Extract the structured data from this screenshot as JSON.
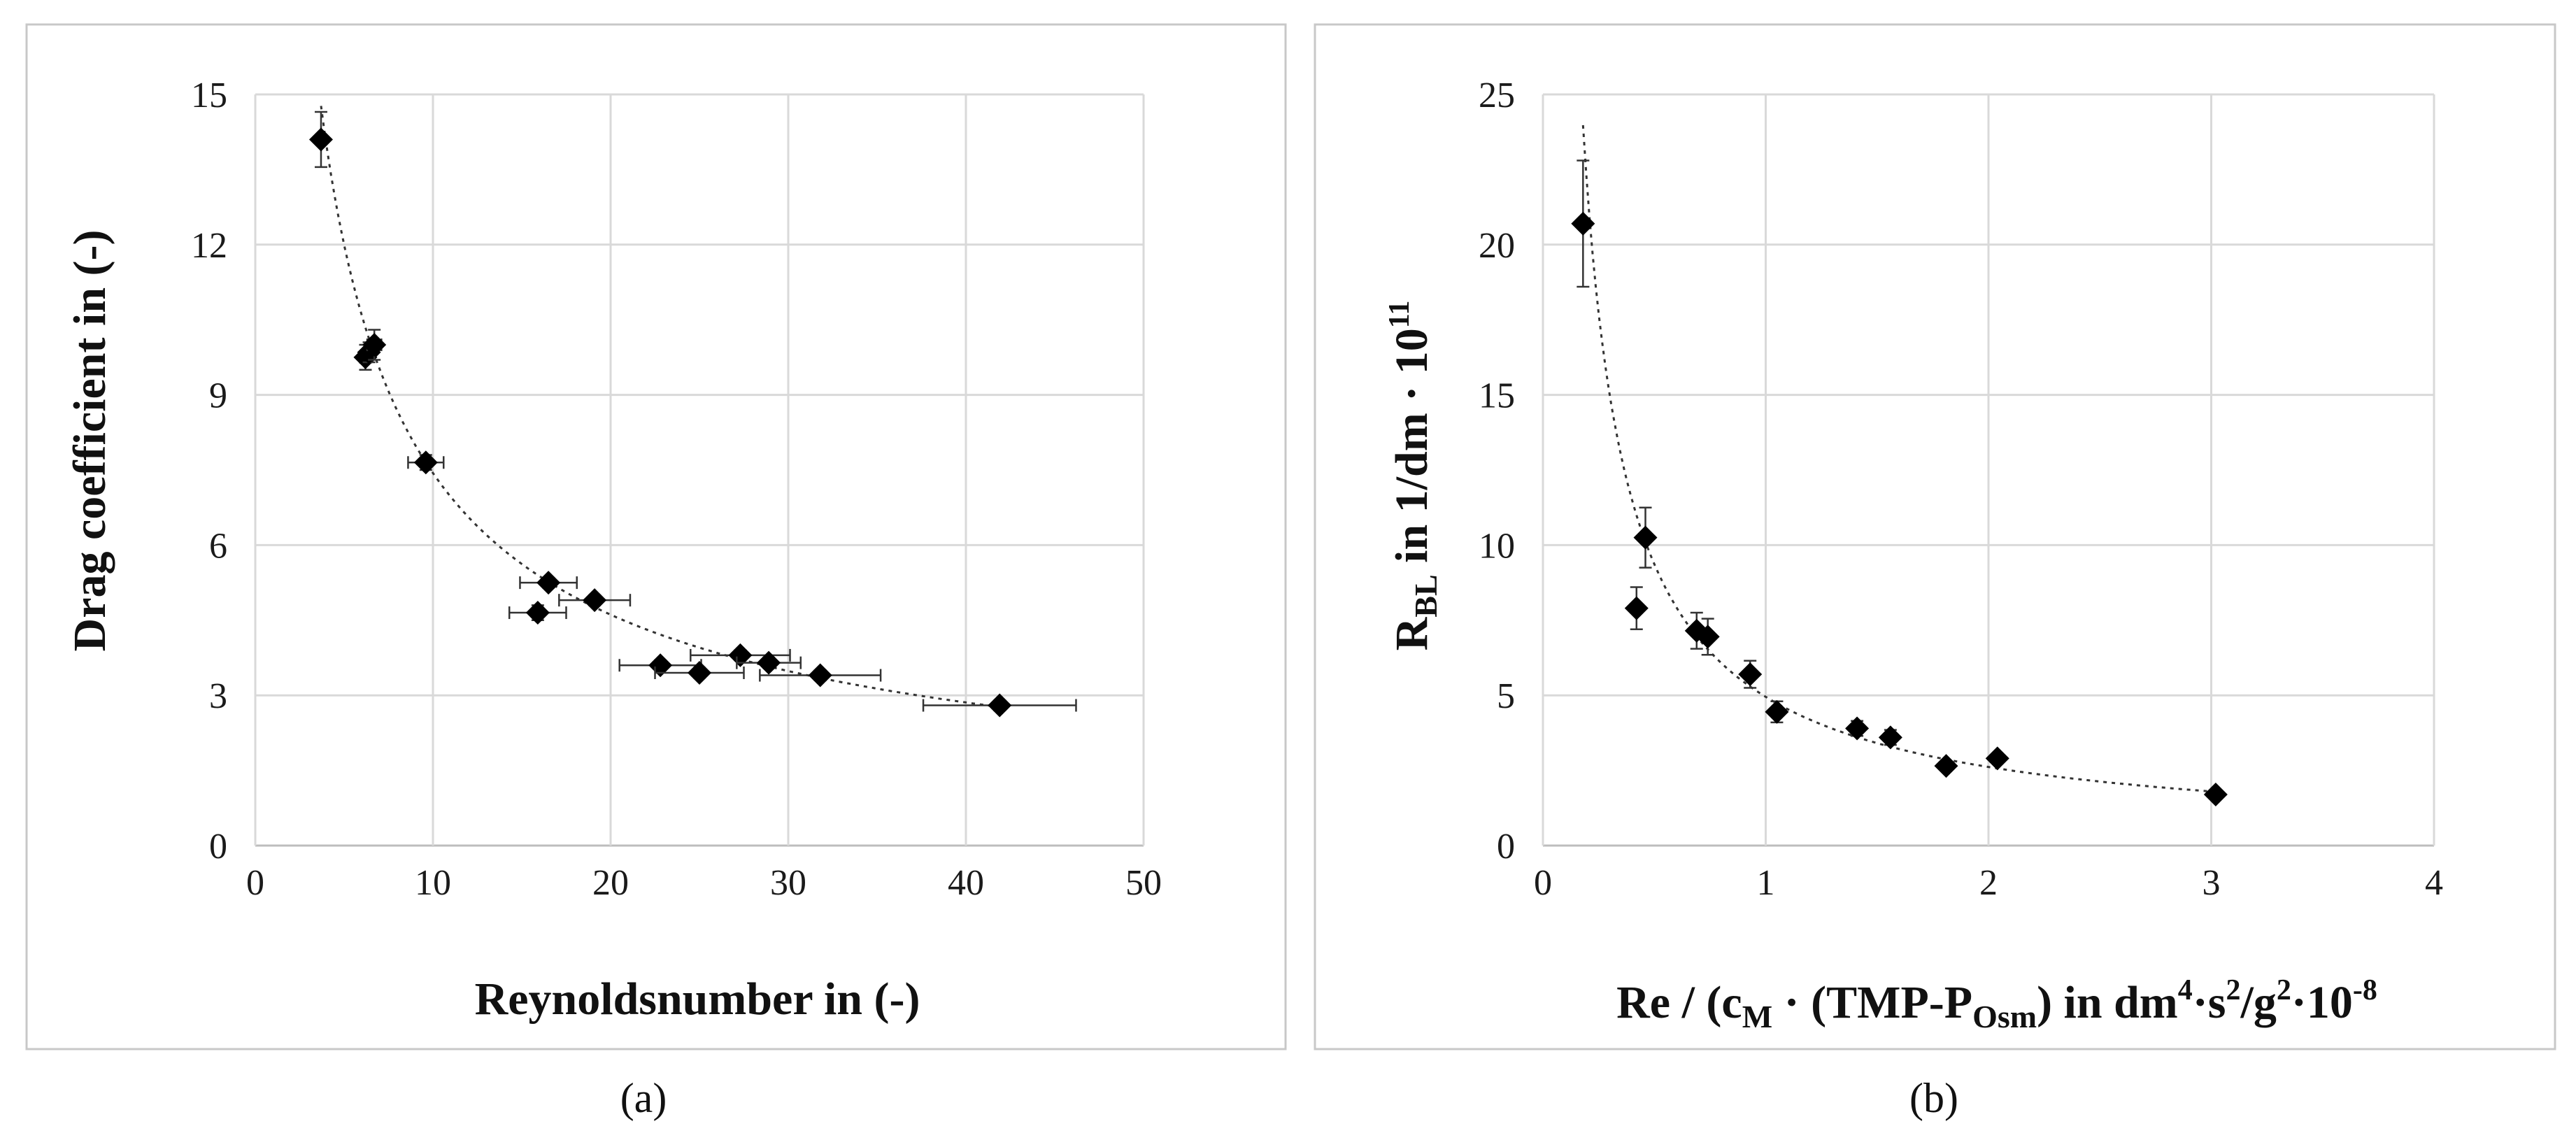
{
  "chart_data": [
    {
      "type": "scatter",
      "panel_label": "(a)",
      "xlabel": "Reynoldsnumber in (-)",
      "ylabel": "Drag coefficient in (-)",
      "xlim": [
        0,
        50
      ],
      "ylim": [
        0,
        15
      ],
      "xticks": [
        0,
        10,
        20,
        30,
        40,
        50
      ],
      "yticks": [
        0,
        3,
        6,
        9,
        12,
        15
      ],
      "grid": true,
      "trendline": "power (dotted)",
      "points": [
        {
          "x": 3.7,
          "y": 14.1,
          "yerr": 0.55,
          "xerr": 0
        },
        {
          "x": 6.2,
          "y": 9.75,
          "yerr": 0.25,
          "xerr": 0.3
        },
        {
          "x": 6.4,
          "y": 9.85,
          "yerr": 0.2,
          "xerr": 0
        },
        {
          "x": 6.7,
          "y": 10.0,
          "yerr": 0.3,
          "xerr": 0.4
        },
        {
          "x": 9.6,
          "y": 7.65,
          "yerr": 0.15,
          "xerr": 1.0
        },
        {
          "x": 15.9,
          "y": 4.65,
          "yerr": 0.15,
          "xerr": 1.6
        },
        {
          "x": 16.5,
          "y": 5.25,
          "yerr": 0.1,
          "xerr": 1.6
        },
        {
          "x": 19.1,
          "y": 4.9,
          "yerr": 0.1,
          "xerr": 2.0
        },
        {
          "x": 22.8,
          "y": 3.6,
          "yerr": 0.1,
          "xerr": 2.3
        },
        {
          "x": 25.0,
          "y": 3.45,
          "yerr": 0.1,
          "xerr": 2.5
        },
        {
          "x": 27.3,
          "y": 3.8,
          "yerr": 0.1,
          "xerr": 2.8
        },
        {
          "x": 28.9,
          "y": 3.65,
          "yerr": 0.1,
          "xerr": 1.8
        },
        {
          "x": 31.8,
          "y": 3.4,
          "yerr": 0.1,
          "xerr": 3.4
        },
        {
          "x": 41.9,
          "y": 2.8,
          "yerr": 0.1,
          "xerr": 4.3
        }
      ],
      "fit": {
        "a": 36.43,
        "b": -0.69
      }
    },
    {
      "type": "scatter",
      "panel_label": "(b)",
      "xlabel_parts": [
        "Re / (c",
        "M",
        " · (TMP-P",
        "Osm",
        ") in  dm",
        "4",
        "·s",
        "2",
        "/g",
        "2",
        "·10",
        "-8"
      ],
      "ylabel_parts": [
        "R",
        "BL",
        " in 1/dm · 10",
        "11"
      ],
      "xlim": [
        0,
        4
      ],
      "ylim": [
        0,
        25
      ],
      "xticks": [
        0,
        1,
        2,
        3,
        4
      ],
      "yticks": [
        0,
        5,
        10,
        15,
        20,
        25
      ],
      "grid": true,
      "trendline": "power (dotted)",
      "points": [
        {
          "x": 0.18,
          "y": 20.7,
          "yerr": 2.1
        },
        {
          "x": 0.42,
          "y": 7.9,
          "yerr": 0.7
        },
        {
          "x": 0.46,
          "y": 10.25,
          "yerr": 1.0
        },
        {
          "x": 0.69,
          "y": 7.15,
          "yerr": 0.6
        },
        {
          "x": 0.74,
          "y": 6.95,
          "yerr": 0.6
        },
        {
          "x": 0.93,
          "y": 5.7,
          "yerr": 0.45
        },
        {
          "x": 1.05,
          "y": 4.45,
          "yerr": 0.35
        },
        {
          "x": 1.41,
          "y": 3.9,
          "yerr": 0.25
        },
        {
          "x": 1.56,
          "y": 3.6,
          "yerr": 0.25
        },
        {
          "x": 1.81,
          "y": 2.65,
          "yerr": 0.15
        },
        {
          "x": 2.04,
          "y": 2.9,
          "yerr": 0.15
        },
        {
          "x": 3.02,
          "y": 1.7,
          "yerr": 0.1
        }
      ],
      "fit": {
        "a": 4.95,
        "b": -0.92
      }
    }
  ]
}
